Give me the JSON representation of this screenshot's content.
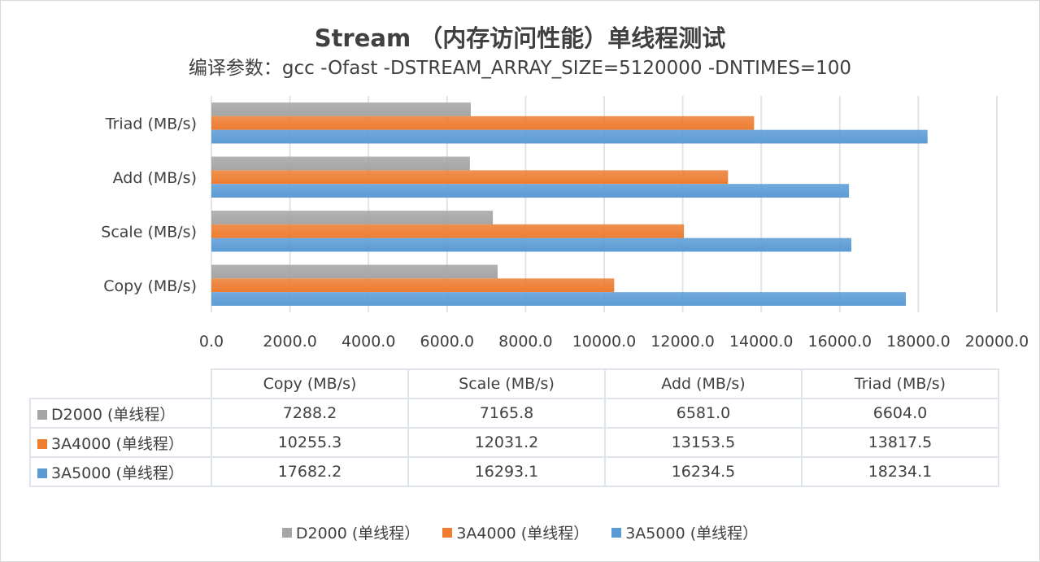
{
  "chart_data": {
    "type": "bar",
    "orientation": "horizontal",
    "title": "Stream （内存访问性能）单线程测试",
    "subtitle": "编译参数：gcc -Ofast -DSTREAM_ARRAY_SIZE=5120000 -DNTIMES=100",
    "categories": [
      "Copy (MB/s)",
      "Scale (MB/s)",
      "Add (MB/s)",
      "Triad (MB/s)"
    ],
    "series": [
      {
        "name": "D2000 (单线程）",
        "color": "#A5A5A5",
        "values": [
          7288.2,
          7165.8,
          6581.0,
          6604.0
        ]
      },
      {
        "name": "3A4000 (单线程）",
        "color": "#ED7D31",
        "values": [
          10255.3,
          12031.2,
          13153.5,
          13817.5
        ]
      },
      {
        "name": "3A5000 (单线程）",
        "color": "#5B9BD5",
        "values": [
          17682.2,
          16293.1,
          16234.5,
          18234.1
        ]
      }
    ],
    "xlim": [
      0,
      20000
    ],
    "xticks": [
      "0.0",
      "2000.0",
      "4000.0",
      "6000.0",
      "8000.0",
      "10000.0",
      "12000.0",
      "14000.0",
      "16000.0",
      "18000.0",
      "20000.0"
    ],
    "grid": true,
    "data_table": true,
    "legend": "bottom",
    "table_values": [
      [
        "7288.2",
        "7165.8",
        "6581.0",
        "6604.0"
      ],
      [
        "10255.3",
        "12031.2",
        "13153.5",
        "13817.5"
      ],
      [
        "17682.2",
        "16293.1",
        "16234.5",
        "18234.1"
      ]
    ]
  }
}
